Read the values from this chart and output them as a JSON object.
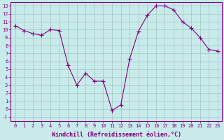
{
  "x": [
    0,
    1,
    2,
    3,
    4,
    5,
    6,
    7,
    8,
    9,
    10,
    11,
    12,
    13,
    14,
    15,
    16,
    17,
    18,
    19,
    20,
    21,
    22,
    23
  ],
  "y": [
    10.5,
    9.9,
    9.5,
    9.3,
    10.0,
    9.9,
    5.5,
    3.0,
    4.5,
    3.5,
    3.5,
    -0.2,
    0.5,
    6.3,
    9.8,
    11.8,
    13.0,
    13.0,
    12.5,
    11.0,
    10.2,
    9.0,
    7.5,
    7.3
  ],
  "line_color": "#800080",
  "marker": "+",
  "marker_size": 4,
  "bg_color": "#c8eaea",
  "grid_color": "#a0c8c0",
  "xlabel": "Windchill (Refroidissement éolien,°C)",
  "xlim": [
    -0.5,
    23.5
  ],
  "ylim": [
    -1.5,
    13.5
  ],
  "yticks": [
    -1,
    0,
    1,
    2,
    3,
    4,
    5,
    6,
    7,
    8,
    9,
    10,
    11,
    12,
    13
  ],
  "xticks": [
    0,
    1,
    2,
    3,
    4,
    5,
    6,
    7,
    8,
    9,
    10,
    11,
    12,
    13,
    14,
    15,
    16,
    17,
    18,
    19,
    20,
    21,
    22,
    23
  ],
  "tick_fontsize": 5.0,
  "xlabel_fontsize": 6.0,
  "lw": 0.8
}
